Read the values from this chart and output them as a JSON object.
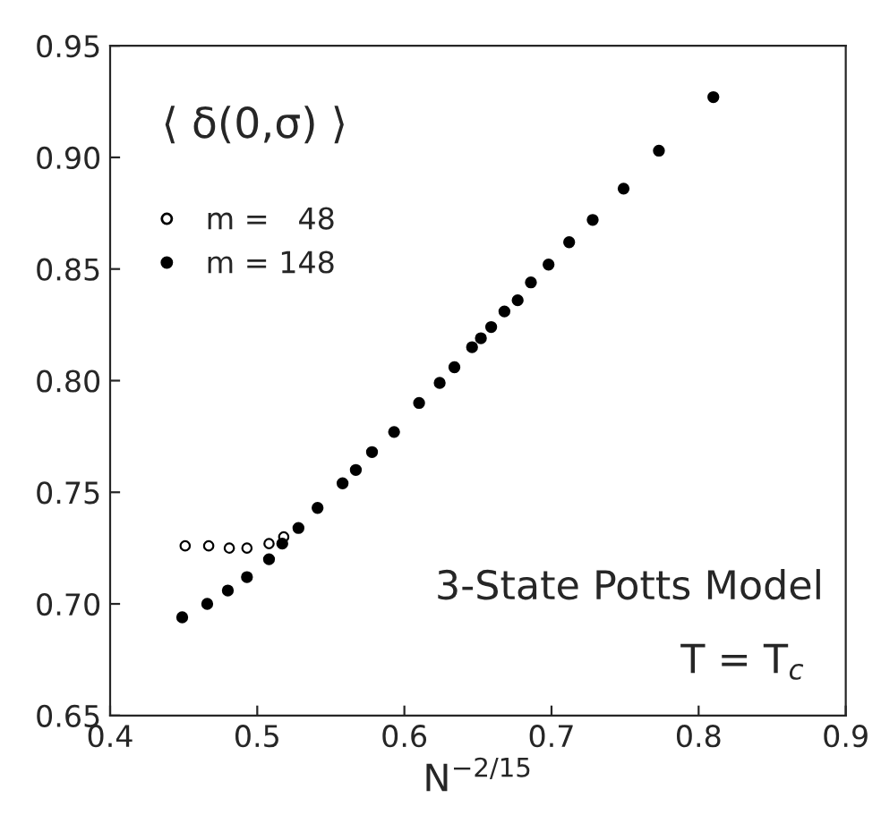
{
  "chart_data": {
    "type": "scatter",
    "xlabel": "N$^{−2/15}$",
    "annotations": [
      "⟨ δ(0,σ) ⟩",
      "3-State Potts Model",
      "T = T$_{c}$"
    ],
    "series": [
      {
        "name": "m =   48",
        "color": "#000000",
        "x": [
          0.451,
          0.467,
          0.481,
          0.493,
          0.508,
          0.518
        ],
        "values": [
          0.726,
          0.726,
          0.725,
          0.725,
          0.727,
          0.73
        ]
      },
      {
        "name": "m = 148",
        "color": "#000000",
        "x": [
          0.449,
          0.466,
          0.48,
          0.493,
          0.508,
          0.517,
          0.528,
          0.541,
          0.558,
          0.567,
          0.578,
          0.593,
          0.61,
          0.624,
          0.634,
          0.646,
          0.652,
          0.659,
          0.668,
          0.677,
          0.686,
          0.698,
          0.712,
          0.728,
          0.749,
          0.773,
          0.81
        ],
        "values": [
          0.694,
          0.7,
          0.706,
          0.712,
          0.72,
          0.727,
          0.734,
          0.743,
          0.754,
          0.76,
          0.768,
          0.777,
          0.79,
          0.799,
          0.806,
          0.815,
          0.819,
          0.824,
          0.831,
          0.836,
          0.844,
          0.852,
          0.862,
          0.872,
          0.886,
          0.903,
          0.927
        ]
      }
    ],
    "xlim": [
      0.4,
      0.9
    ],
    "xticks": [
      0.4,
      0.5,
      0.6,
      0.7,
      0.8,
      0.9
    ],
    "ylim": [
      0.65,
      0.95
    ],
    "yticks": [
      0.65,
      {
        "value": 0.7,
        "label": "0.70"
      },
      0.75,
      {
        "value": 0.8,
        "label": "0.80"
      },
      0.85,
      {
        "value": 0.9,
        "label": "0.90"
      },
      0.95
    ],
    "marker": "circle",
    "grid": false,
    "legend": "top left"
  }
}
